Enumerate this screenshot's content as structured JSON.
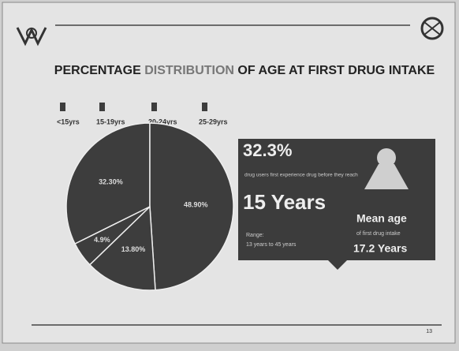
{
  "chart_data": {
    "type": "pie",
    "title_parts": [
      "PERCENTAGE ",
      "DISTRIBUTION",
      " OF AGE AT FIRST DRUG INTAKE"
    ],
    "categories": [
      "<15yrs",
      "15-19yrs",
      "20-24yrs",
      "25-29yrs"
    ],
    "values": [
      32.3,
      48.9,
      13.8,
      4.9
    ],
    "value_labels": [
      "32.30%",
      "48.90%",
      "13.80%",
      "4.9%"
    ],
    "colors": [
      "#3d3d3d",
      "#3d3d3d",
      "#3d3d3d",
      "#3d3d3d"
    ],
    "legend": "top-left"
  },
  "infographic": {
    "headline_value": "32.3%",
    "headline_text": "drug users first experience drug before they reach",
    "age_value": "15 Years",
    "range_label": "Range:",
    "range_text": "13 years to 45 years",
    "mean_label": "Mean age",
    "mean_text": "of first drug intake",
    "mean_value": "17.2 Years"
  },
  "footer": {
    "slide_number": "13"
  }
}
